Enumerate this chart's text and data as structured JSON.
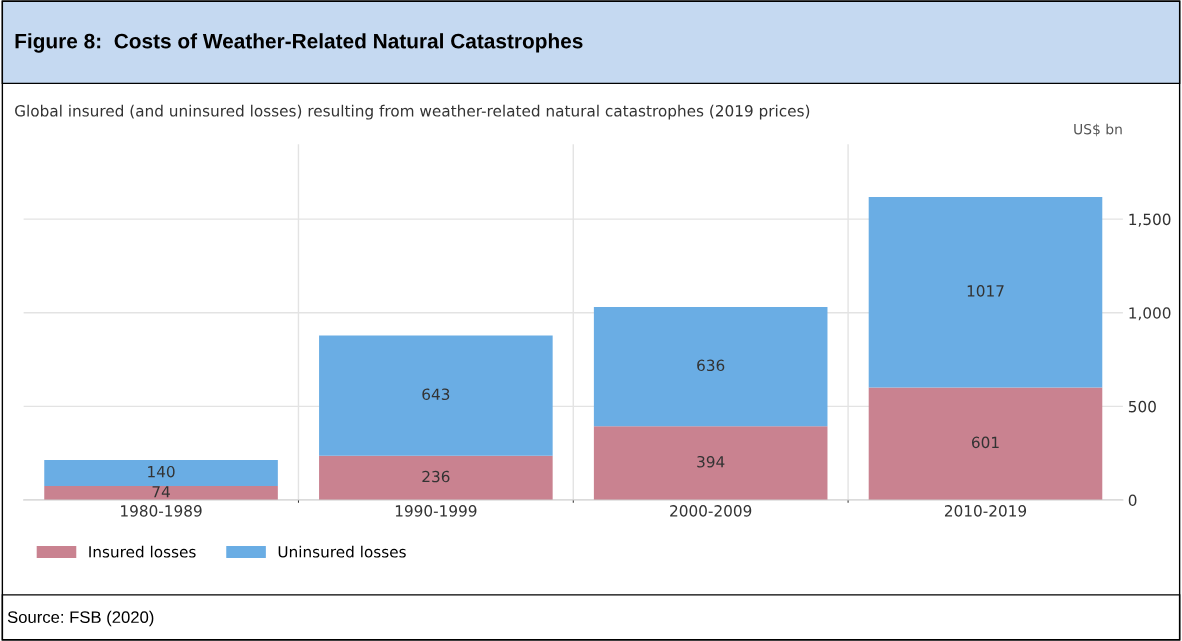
{
  "chart_data": {
    "type": "bar",
    "stacked": true,
    "title": "Figure 8:  Costs of Weather-Related Natural Catastrophes",
    "subtitle": "Global insured (and uninsured losses) resulting from weather-related natural catastrophes (2019 prices)",
    "ylabel": "US$ bn",
    "categories": [
      "1980-1989",
      "1990-1999",
      "2000-2009",
      "2010-2019"
    ],
    "series": [
      {
        "name": "Insured losses",
        "color": "#c98290",
        "values": [
          74,
          236,
          394,
          601
        ]
      },
      {
        "name": "Uninsured losses",
        "color": "#6aade4",
        "values": [
          140,
          643,
          636,
          1017
        ]
      }
    ],
    "data_labels": true,
    "ylim": [
      0,
      1900
    ],
    "yticks": [
      0,
      {
        "value": 500,
        "label": "500"
      },
      {
        "value": 1000,
        "label": "1,000"
      },
      {
        "value": 1500,
        "label": "1,500"
      }
    ],
    "grid": true,
    "legend": "bottom left",
    "annotations": [
      "Source: FSB (2020)"
    ]
  }
}
